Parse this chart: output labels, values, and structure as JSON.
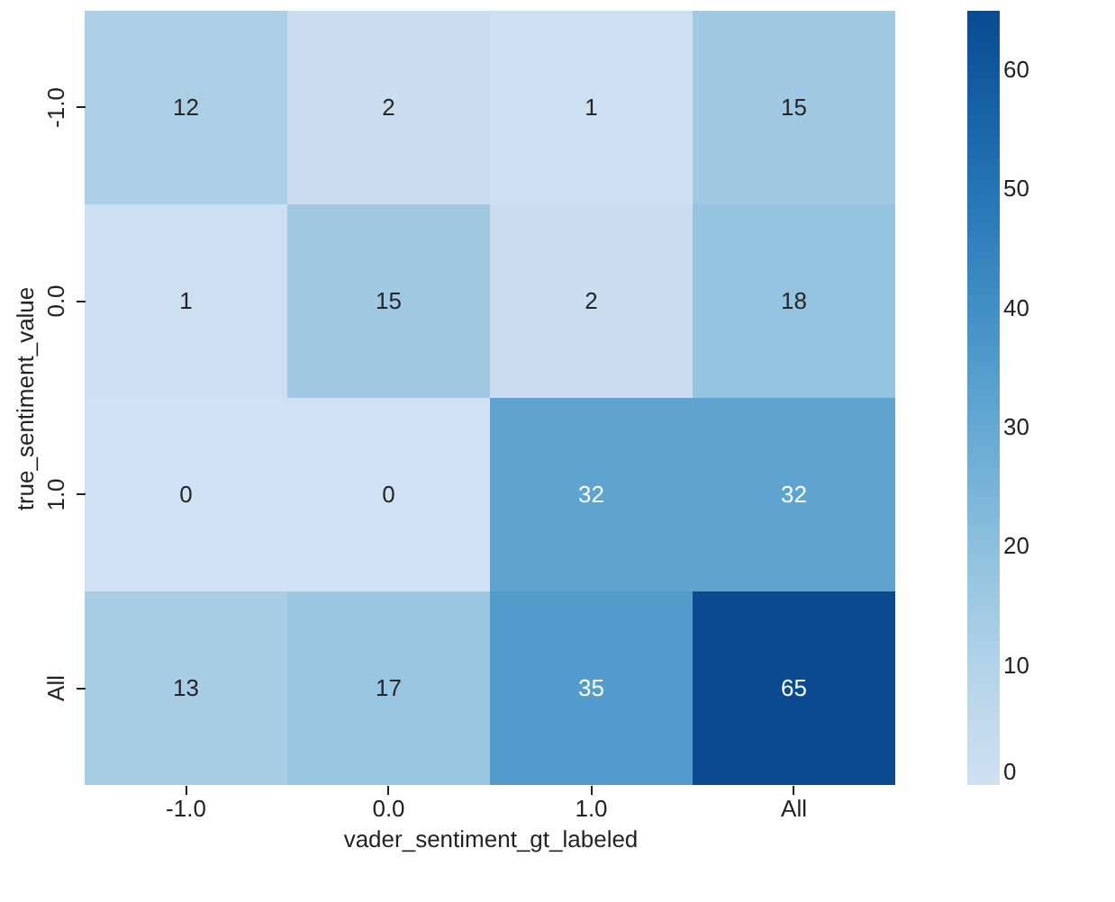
{
  "chart_data": {
    "type": "heatmap",
    "xlabel": "vader_sentiment_gt_labeled",
    "ylabel": "true_sentiment_value",
    "categories": [
      "-1.0",
      "0.0",
      "1.0",
      "All"
    ],
    "y_categories": [
      "-1.0",
      "0.0",
      "1.0",
      "All"
    ],
    "cells": [
      [
        12,
        2,
        1,
        15
      ],
      [
        1,
        15,
        2,
        18
      ],
      [
        0,
        0,
        32,
        32
      ],
      [
        13,
        17,
        35,
        65
      ]
    ],
    "clim": [
      0,
      65
    ],
    "cticks": [
      0,
      10,
      20,
      30,
      40,
      50,
      60
    ],
    "data_labels": true
  }
}
